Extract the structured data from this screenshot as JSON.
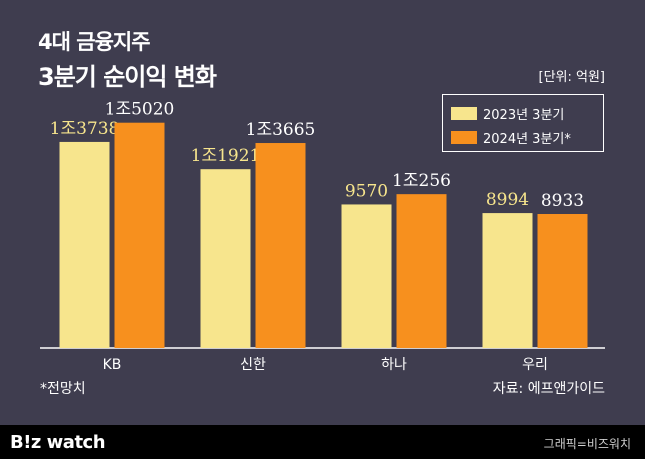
{
  "header": {
    "title_line1": "4대 금융지주",
    "title_line2": "3분기 순이익 변화",
    "unit": "[단위: 억원]"
  },
  "legend": {
    "items": [
      {
        "label": "2023년 3분기",
        "color": "#f7e58d"
      },
      {
        "label": "2024년 3분기*",
        "color": "#f7901e"
      }
    ]
  },
  "footer": {
    "note": "*전망치",
    "source": "자료: 에프앤가이드"
  },
  "brand": {
    "logo": "B!z watch",
    "credit": "그래픽=비즈워치"
  },
  "chart_data": {
    "type": "bar",
    "categories": [
      "KB",
      "신한",
      "하나",
      "우리"
    ],
    "series": [
      {
        "name": "2023년 3분기",
        "values": [
          13738,
          11921,
          9570,
          8994
        ],
        "labels": [
          "1조3738",
          "1조1921",
          "9570",
          "8994"
        ],
        "color": "#f7e58d"
      },
      {
        "name": "2024년 3분기*",
        "values": [
          15020,
          13665,
          10256,
          8933
        ],
        "labels": [
          "1조5020",
          "1조3665",
          "1조256",
          "8933"
        ],
        "color": "#f7901e"
      }
    ],
    "ylim": [
      0,
      15000
    ],
    "grid": false,
    "legend_position": "top-right"
  }
}
